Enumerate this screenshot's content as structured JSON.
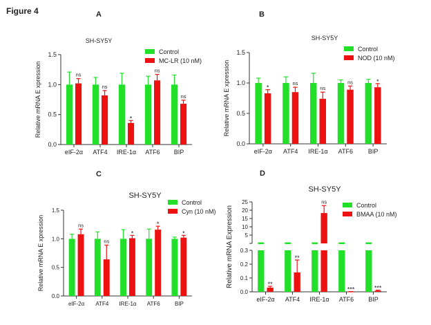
{
  "figure_title": "Figure 4",
  "colors": {
    "control": "#22e02a",
    "treatment": "#ee1111",
    "axis": "#333333"
  },
  "chart_data": [
    {
      "panel": "A",
      "type": "bar",
      "title": "SH-SY5Y",
      "xlabel": "",
      "ylabel": "Relative mRNA E xpression",
      "ylim": [
        0,
        1.5
      ],
      "yticks": [
        "0.0",
        "0.5",
        "1.0",
        "1.5"
      ],
      "ytick_values": [
        0,
        0.5,
        1.0,
        1.5
      ],
      "categories": [
        "eIF-2α",
        "ATF4",
        "IRE-1α",
        "ATF6",
        "BIP"
      ],
      "legend_position": "top-right",
      "series": [
        {
          "name": "Control",
          "values": [
            1.0,
            1.0,
            1.0,
            1.0,
            1.0
          ],
          "error_upper": [
            1.21,
            1.12,
            1.19,
            1.14,
            1.16
          ]
        },
        {
          "name": "MC-LR (10 nM)",
          "values": [
            1.02,
            0.82,
            0.36,
            1.07,
            0.68
          ],
          "error_upper": [
            1.1,
            0.9,
            0.4,
            1.17,
            0.74
          ]
        }
      ],
      "annotations": [
        "ns",
        "ns",
        "*",
        "ns",
        "ns"
      ]
    },
    {
      "panel": "B",
      "type": "bar",
      "title": "SH-SY5Y",
      "xlabel": "",
      "ylabel": "Relative mRNA E xpression",
      "ylim": [
        0,
        1.5
      ],
      "yticks": [
        "0.0",
        "0.5",
        "1.0",
        "1.5"
      ],
      "ytick_values": [
        0,
        0.5,
        1.0,
        1.5
      ],
      "categories": [
        "eIF-2α",
        "ATF4",
        "IRE-1α",
        "ATF6",
        "BIP"
      ],
      "legend_position": "top-right",
      "series": [
        {
          "name": "Control",
          "values": [
            1.0,
            1.0,
            1.0,
            1.0,
            1.0
          ],
          "error_upper": [
            1.08,
            1.1,
            1.16,
            1.05,
            1.06
          ]
        },
        {
          "name": "NOD (10 nM)",
          "values": [
            0.83,
            0.85,
            0.74,
            0.89,
            0.93
          ],
          "error_upper": [
            0.89,
            0.93,
            0.85,
            0.95,
            0.99
          ]
        }
      ],
      "annotations": [
        "*",
        "ns",
        "ns",
        "ns",
        "*"
      ]
    },
    {
      "panel": "C",
      "type": "bar",
      "title": "SH-SY5Y",
      "xlabel": "",
      "ylabel": "Relative mRNA E xpression",
      "ylim": [
        0,
        1.5
      ],
      "yticks": [
        "0.0",
        "0.5",
        "1.0",
        "1.5"
      ],
      "ytick_values": [
        0,
        0.5,
        1.0,
        1.5
      ],
      "categories": [
        "eIF-2α",
        "ATF4",
        "IRE-1α",
        "ATF6",
        "BIP"
      ],
      "legend_position": "top-right",
      "series": [
        {
          "name": "Control",
          "values": [
            1.0,
            1.0,
            1.0,
            1.0,
            1.0
          ],
          "error_upper": [
            1.08,
            1.12,
            1.16,
            1.17,
            1.03
          ]
        },
        {
          "name": "Cyn (10 nM)",
          "values": [
            1.08,
            0.64,
            1.01,
            1.16,
            1.02
          ],
          "error_upper": [
            1.17,
            0.89,
            1.06,
            1.22,
            1.06
          ]
        }
      ],
      "annotations": [
        "ns",
        "ns",
        "*",
        "*",
        "*"
      ]
    },
    {
      "panel": "D",
      "type": "bar",
      "title": "SH-SY5Y",
      "xlabel": "",
      "ylabel": "Relative mRNA Expression",
      "axis_break": true,
      "ylim_lower": [
        0,
        0.3
      ],
      "ylim_upper": [
        0,
        25
      ],
      "yticks_lower": [
        "0.0",
        "0.1",
        "0.2",
        "0.3"
      ],
      "ytick_values_lower": [
        0,
        0.1,
        0.2,
        0.3
      ],
      "yticks_upper": [
        "5",
        "10",
        "15",
        "20",
        "25"
      ],
      "ytick_values_upper": [
        5,
        10,
        15,
        20,
        25
      ],
      "categories": [
        "eIF-2α",
        "ATF4",
        "IRE-1α",
        "ATF6",
        "BIP"
      ],
      "legend_position": "top-right",
      "series": [
        {
          "name": "Control",
          "values": [
            1.0,
            1.0,
            1.0,
            1.0,
            1.0
          ],
          "error_upper": [
            null,
            null,
            null,
            null,
            null
          ]
        },
        {
          "name": "BMAA (10 nM)",
          "values": [
            0.03,
            0.14,
            18.3,
            0.001,
            0.008
          ],
          "error_upper": [
            0.04,
            0.23,
            22.8,
            0.002,
            0.012
          ]
        }
      ],
      "annotations": [
        "**",
        "**",
        "ns",
        "***",
        "***"
      ]
    }
  ]
}
